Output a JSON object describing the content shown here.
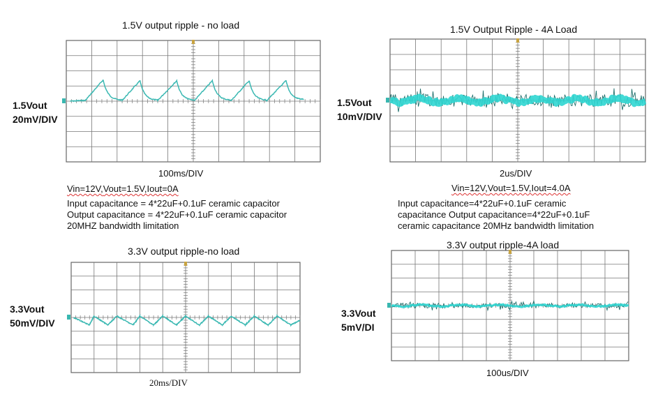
{
  "panels": [
    {
      "title": "1.5V output ripple - no load",
      "ch_label_1": "1.5Vout",
      "ch_label_2": "20mV/DIV",
      "timebase": "100ms/DIV",
      "conditions": [
        "Vin=12V,",
        "Vout=1.5V,",
        "Iout=0A"
      ],
      "notes": [
        "Input capacitance = 4*22uF+0.1uF ceramic capacitor",
        "Output capacitance = 4*22uF+0.1uF ceramic capacitor",
        "20MHZ bandwidth limitation"
      ]
    },
    {
      "title": "1.5V Output Ripple - 4A Load",
      "ch_label_1": "1.5Vout",
      "ch_label_2": "10mV/DIV",
      "timebase": "2us/DIV",
      "conditions": [
        "Vin=12V,",
        "Vout=1.5V,",
        "Iout=4.0A"
      ],
      "notes": [
        "Input capacitance=4*22uF+0.1uF ceramic",
        "capacitance Output capacitance=4*22uF+0.1uF",
        "ceramic capacitance 20MHz bandwidth limitation"
      ]
    },
    {
      "title": "3.3V output ripple-no load",
      "ch_label_1": "3.3Vout",
      "ch_label_2": "50mV/DIV",
      "timebase": "20ms/DIV"
    },
    {
      "title": "3.3V output ripple-4A load",
      "ch_label_1": "3.3Vout",
      "ch_label_2": "5mV/DI",
      "timebase": "100us/DIV"
    }
  ],
  "chart_data": [
    {
      "type": "line",
      "title": "1.5V output ripple - no load",
      "xlabel": "100ms/DIV",
      "ylabel": "1.5Vout 20mV/DIV",
      "grid": true,
      "divisions": [
        10,
        8
      ],
      "x_div": [
        0.15,
        0.75,
        1.45,
        2.2,
        2.9,
        3.6,
        4.35,
        5.05,
        5.75,
        6.5,
        7.2,
        7.9,
        8.65,
        9.35
      ],
      "y_div": [
        0.0,
        0.05,
        1.4,
        0.05,
        1.35,
        0.05,
        1.35,
        0.05,
        1.35,
        0.05,
        1.35,
        0.05,
        1.35,
        0.1
      ],
      "series_color": "#3ab8b2",
      "grid_color": "#777777"
    },
    {
      "type": "line",
      "title": "1.5V Output Ripple - 4A Load",
      "xlabel": "2us/DIV",
      "ylabel": "1.5Vout 10mV/DIV",
      "grid": true,
      "divisions": [
        10,
        8
      ],
      "offset_div": 0.0,
      "band_pp_div": 0.8,
      "series_color": "#2fd6d2",
      "noise_color": "#1f6f6c",
      "grid_color": "#777777"
    },
    {
      "type": "line",
      "title": "3.3V output ripple-no load",
      "xlabel": "20ms/DIV",
      "ylabel": "3.3Vout 50mV/DIV",
      "grid": true,
      "divisions": [
        10,
        8
      ],
      "x_div": [
        0.1,
        0.8,
        1.0,
        1.6,
        2.0,
        2.7,
        3.0,
        3.6,
        4.0,
        4.6,
        5.0,
        5.6,
        6.0,
        6.6,
        7.0,
        7.6,
        8.0,
        8.6,
        9.0,
        9.6,
        10.0
      ],
      "y_div": [
        0.0,
        -0.55,
        0.1,
        -0.55,
        0.1,
        -0.55,
        0.1,
        -0.55,
        0.1,
        -0.55,
        0.1,
        -0.55,
        0.1,
        -0.55,
        0.1,
        -0.55,
        0.1,
        -0.55,
        0.1,
        -0.55,
        -0.2
      ],
      "series_color": "#3ab8b2",
      "grid_color": "#777777"
    },
    {
      "type": "line",
      "title": "3.3V output ripple-4A load",
      "xlabel": "100us/DIV",
      "ylabel": "3.3Vout 5mV/DI",
      "grid": true,
      "divisions": [
        10,
        8
      ],
      "offset_div": 0.0,
      "band_pp_div": 0.35,
      "series_color": "#2fd6d2",
      "noise_color": "#1f6f6c",
      "grid_color": "#777777"
    }
  ]
}
